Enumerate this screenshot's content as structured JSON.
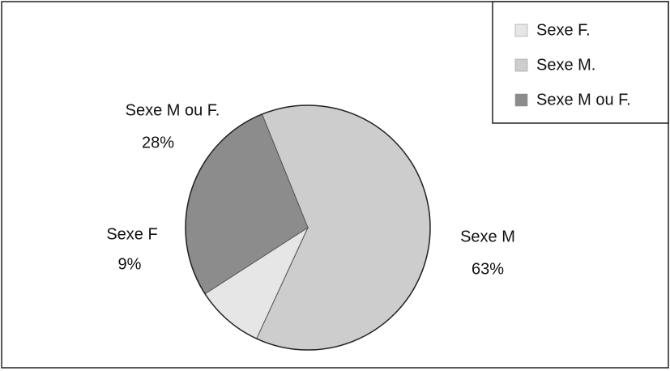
{
  "chart_data": {
    "type": "pie",
    "categories": [
      "Sexe F.",
      "Sexe M.",
      "Sexe M ou F."
    ],
    "labels": [
      "Sexe F",
      "Sexe M",
      "Sexe M ou F."
    ],
    "values": [
      9,
      63,
      28
    ],
    "value_labels": [
      "9%",
      "63%",
      "28%"
    ],
    "colors": [
      "#e6e6e6",
      "#cdcdcd",
      "#8c8c8c"
    ],
    "legend": "top-right"
  }
}
